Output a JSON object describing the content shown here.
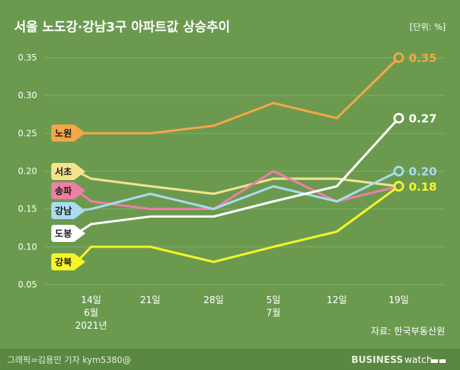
{
  "title": "서울 노도강·강남3구 아파트값 상승추이",
  "unit": "[단위: %]",
  "source": "자료: 한국부동산원",
  "credit": "그래픽=김용민 기자 kym5380@",
  "brand": {
    "bold": "BUSINESS",
    "light": "watch"
  },
  "colors": {
    "background": "#6b9a4f",
    "footer": "#5a8742",
    "grid": "#84ad6a",
    "text": "#ffffff"
  },
  "chart_data": {
    "type": "line",
    "categories": [
      "14일",
      "21일",
      "28일",
      "5일",
      "12일",
      "19일"
    ],
    "month_labels": [
      {
        "at": 0,
        "lines": [
          "6월",
          "2021년"
        ]
      },
      {
        "at": 3,
        "lines": [
          "7월"
        ]
      }
    ],
    "ylim": [
      0.05,
      0.35
    ],
    "yticks": [
      "0.35",
      "0.30",
      "0.25",
      "0.20",
      "0.15",
      "0.10",
      "0.05"
    ],
    "grid": true,
    "series": [
      {
        "name": "노원",
        "color": "#f5a646",
        "values": [
          0.25,
          0.25,
          0.26,
          0.29,
          0.27,
          0.35
        ],
        "end_label": "0.35"
      },
      {
        "name": "서초",
        "color": "#f2e48c",
        "values": [
          0.19,
          0.18,
          0.17,
          0.19,
          0.19,
          0.18
        ]
      },
      {
        "name": "송파",
        "color": "#ee7fa5",
        "values": [
          0.16,
          0.15,
          0.15,
          0.2,
          0.16,
          0.18
        ]
      },
      {
        "name": "강남",
        "color": "#a8dcee",
        "values": [
          0.15,
          0.17,
          0.15,
          0.18,
          0.16,
          0.2
        ],
        "end_label": "0.20"
      },
      {
        "name": "도봉",
        "color": "#ffffff",
        "values": [
          0.13,
          0.14,
          0.14,
          0.16,
          0.18,
          0.27
        ],
        "end_label": "0.27"
      },
      {
        "name": "강북",
        "color": "#f6f52a",
        "values": [
          0.1,
          0.1,
          0.08,
          0.1,
          0.12,
          0.18
        ],
        "end_label": "0.18"
      }
    ]
  }
}
